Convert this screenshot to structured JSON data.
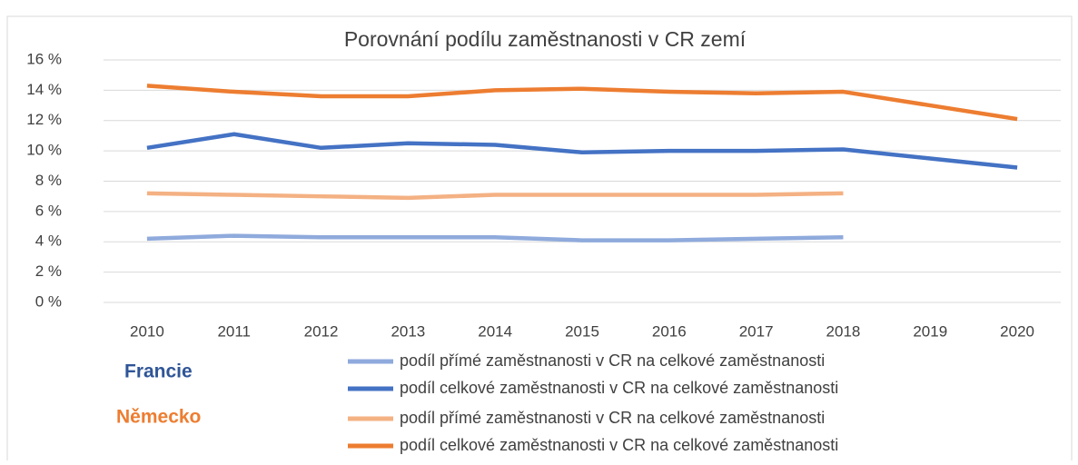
{
  "chart_data": {
    "type": "line",
    "title": "Porovnání podílu zaměstnanosti v CR zemí",
    "categories": [
      "2010",
      "2011",
      "2012",
      "2013",
      "2014",
      "2015",
      "2016",
      "2017",
      "2018",
      "2019",
      "2020"
    ],
    "series": [
      {
        "name": "podíl přímé zaměstnanosti v CR na celkové zaměstnanosti",
        "color": "#8faadc",
        "values": [
          4.2,
          4.4,
          4.3,
          4.3,
          4.3,
          4.1,
          4.1,
          4.2,
          4.3,
          null,
          null
        ]
      },
      {
        "name": "podíl celkové zaměstnanosti v CR na celkové zaměstnanosti",
        "color": "#4472c4",
        "values": [
          10.2,
          11.1,
          10.2,
          10.5,
          10.4,
          9.9,
          10.0,
          10.0,
          10.1,
          9.5,
          8.9
        ]
      },
      {
        "name": "podíl přímé zaměstnanosti v CR na celkové zaměstnanosti",
        "color": "#f4b183",
        "values": [
          7.2,
          7.1,
          7.0,
          6.9,
          7.1,
          7.1,
          7.1,
          7.1,
          7.2,
          null,
          null
        ]
      },
      {
        "name": "podíl celkové zaměstnanosti v CR na celkové zaměstnanosti",
        "color": "#ed7d31",
        "values": [
          14.3,
          13.9,
          13.6,
          13.6,
          14.0,
          14.1,
          13.9,
          13.8,
          13.9,
          13.0,
          12.1
        ]
      }
    ],
    "ylim": [
      0,
      16
    ],
    "yticks": [
      {
        "value": 0,
        "label": "0 %"
      },
      {
        "value": 2,
        "label": "2 %"
      },
      {
        "value": 4,
        "label": "4 %"
      },
      {
        "value": 6,
        "label": "6 %"
      },
      {
        "value": 8,
        "label": "8 %"
      },
      {
        "value": 10,
        "label": "10 %"
      },
      {
        "value": 12,
        "label": "12 %"
      },
      {
        "value": 14,
        "label": "14 %"
      },
      {
        "value": 16,
        "label": "16 %"
      }
    ],
    "grid": true,
    "annotations": [
      {
        "text": "Francie",
        "color": "#2f5597"
      },
      {
        "text": "Německo",
        "color": "#ed7d31"
      }
    ]
  }
}
